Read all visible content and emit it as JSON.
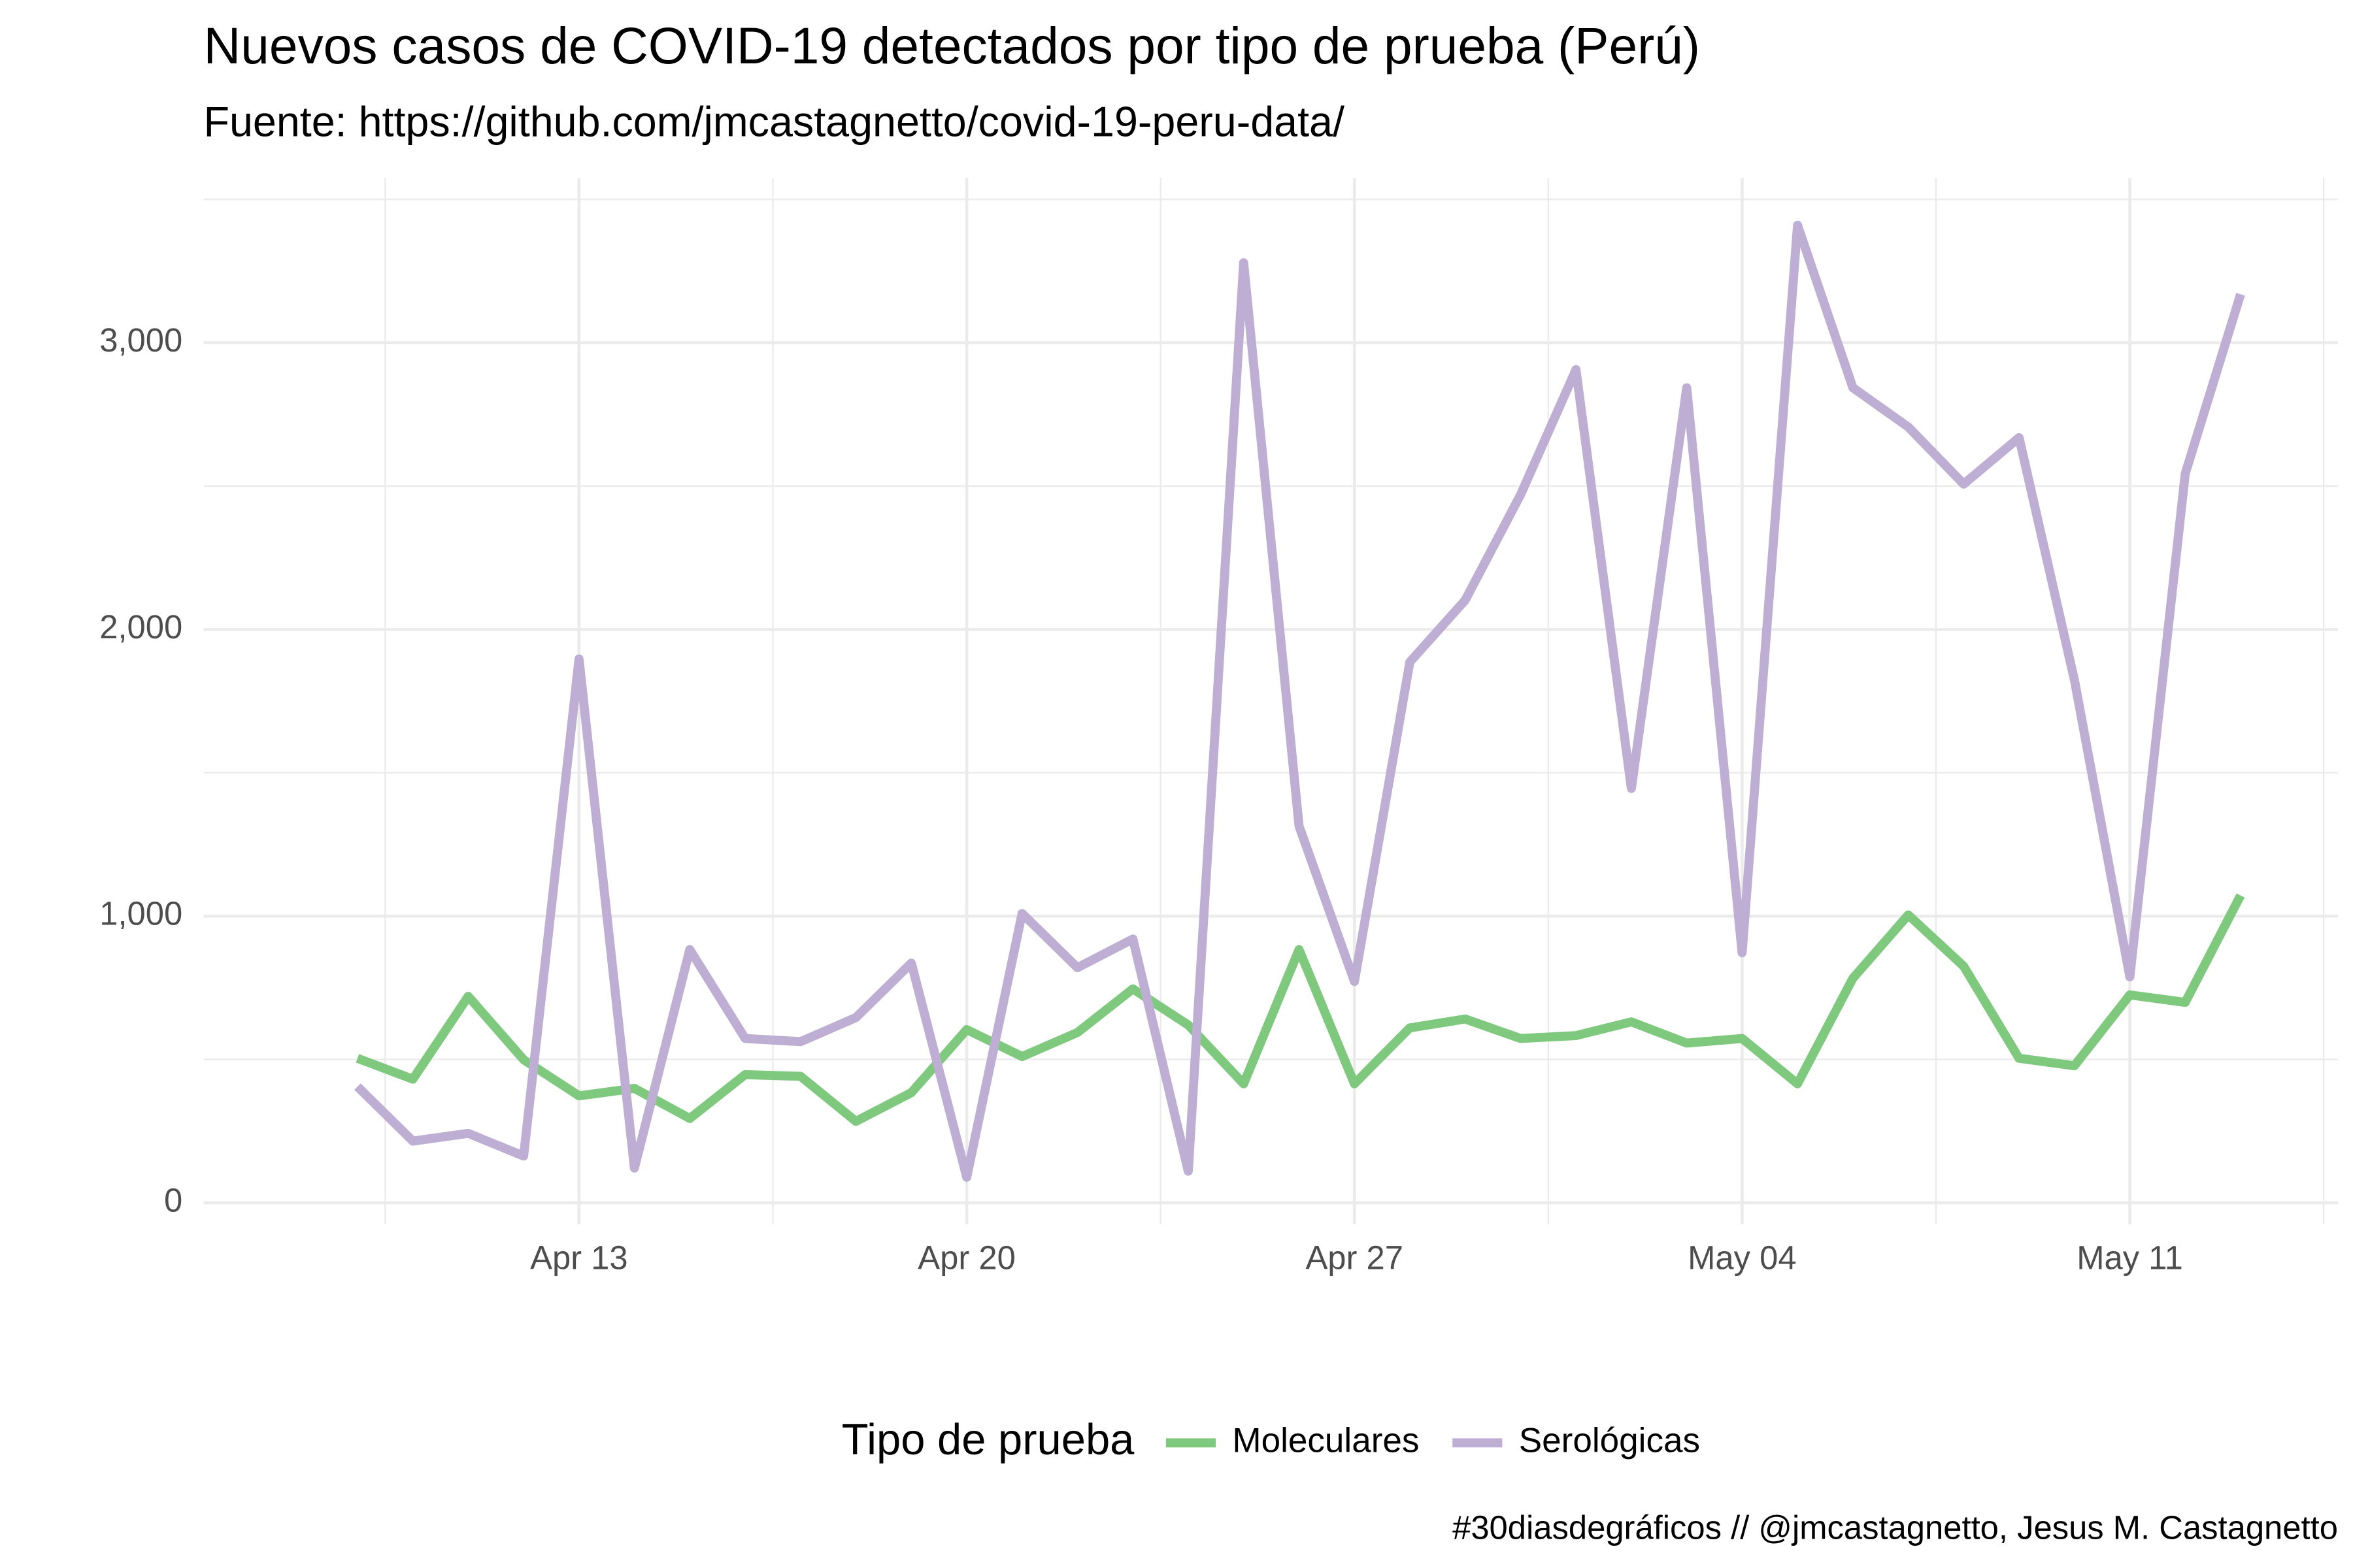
{
  "chart_data": {
    "type": "line",
    "title": "Nuevos casos de COVID-19 detectados por tipo de prueba (Perú)",
    "subtitle": "Fuente: https://github.com/jmcastagnetto/covid-19-peru-data/",
    "caption": "#30diasdegráficos // @jmcastagnetto, Jesus M. Castagnetto",
    "legend_title": "Tipo de prueba",
    "legend_position": "bottom",
    "categories": [
      "Apr 09",
      "Apr 10",
      "Apr 11",
      "Apr 12",
      "Apr 13",
      "Apr 14",
      "Apr 15",
      "Apr 16",
      "Apr 17",
      "Apr 18",
      "Apr 19",
      "Apr 20",
      "Apr 21",
      "Apr 22",
      "Apr 23",
      "Apr 24",
      "Apr 25",
      "Apr 26",
      "Apr 27",
      "Apr 28",
      "Apr 29",
      "Apr 30",
      "May 01",
      "May 02",
      "May 03",
      "May 04",
      "May 05",
      "May 06",
      "May 07",
      "May 08",
      "May 09",
      "May 10",
      "May 11",
      "May 12",
      "May 13"
    ],
    "xticks": [
      "Apr 13",
      "Apr 20",
      "Apr 27",
      "May 04",
      "May 11"
    ],
    "series": [
      {
        "name": "Moleculares",
        "color": "#7fc97f",
        "values": [
          504,
          431,
          720,
          499,
          373,
          399,
          294,
          447,
          441,
          284,
          384,
          604,
          510,
          594,
          746,
          620,
          415,
          883,
          415,
          610,
          641,
          573,
          583,
          631,
          557,
          573,
          415,
          783,
          1004,
          825,
          504,
          478,
          725,
          699,
          1072
        ]
      },
      {
        "name": "Serológicas",
        "color": "#beaed4",
        "values": [
          405,
          215,
          242,
          163,
          1897,
          121,
          883,
          573,
          562,
          646,
          836,
          89,
          1009,
          820,
          920,
          110,
          3279,
          1314,
          772,
          1886,
          2102,
          2470,
          2906,
          1445,
          2843,
          872,
          3410,
          2843,
          2706,
          2507,
          2669,
          1823,
          788,
          2543,
          3169
        ]
      }
    ],
    "ylim": [
      -75,
      3575
    ],
    "yticks": [
      {
        "value": 0,
        "label": "0"
      },
      {
        "value": 1000,
        "label": "1,000"
      },
      {
        "value": 2000,
        "label": "2,000"
      },
      {
        "value": 3000,
        "label": "3,000"
      }
    ],
    "yminorticks": [
      500,
      1500,
      2500,
      3500
    ],
    "grid": true
  }
}
